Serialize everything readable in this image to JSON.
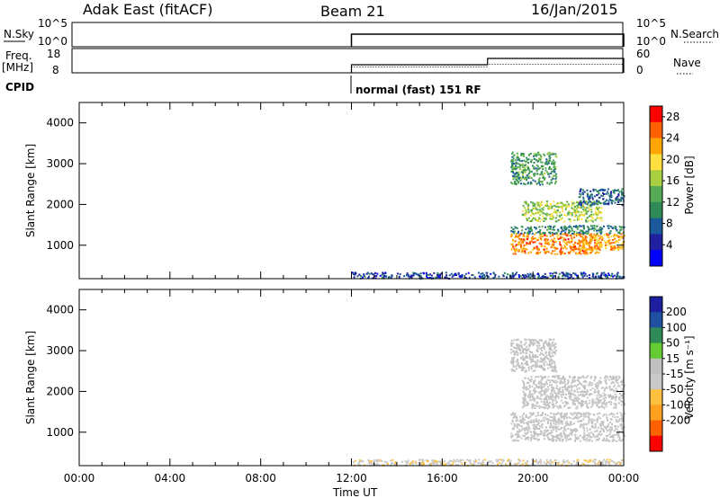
{
  "header": {
    "station": "Adak East (fitACF)",
    "beam": "Beam 21",
    "date": "16/Jan/2015"
  },
  "nsky_panel": {
    "left_label": "N.Sky",
    "right_label": "N.Search",
    "left_ticks": [
      "10^5",
      "10^0"
    ],
    "right_ticks": [
      "10^5",
      "10^0"
    ]
  },
  "freq_panel": {
    "left_label_line1": "Freq.",
    "left_label_line2": "[MHz]",
    "right_label": "Nave",
    "left_ticks": [
      "18",
      "8"
    ],
    "right_ticks": [
      "60",
      "0"
    ]
  },
  "cpid": {
    "label": "CPID",
    "mode": "normal (fast) 151 RF"
  },
  "colors": {
    "power": [
      "#0000ff",
      "#2020a0",
      "#1a5a9a",
      "#2e8b57",
      "#55aa55",
      "#a8d040",
      "#ffe040",
      "#ffa500",
      "#ff6000",
      "#ff0000"
    ],
    "velocity": [
      "#1e1ea0",
      "#2050a0",
      "#2e8b57",
      "#66cc33",
      "#c0c0c0",
      "#c8c8c8",
      "#ffc040",
      "#ffa020",
      "#ff6000",
      "#ff0000"
    ]
  },
  "chart_data": [
    {
      "type": "heatmap",
      "title": "",
      "xlabel": "Time UT",
      "ylabel": "Slant Range [km]",
      "xlim": [
        "00:00",
        "24:00"
      ],
      "x_ticks": [
        "00:00",
        "04:00",
        "08:00",
        "12:00",
        "16:00",
        "20:00",
        "00:00"
      ],
      "ylim": [
        180,
        4500
      ],
      "y_ticks": [
        1000,
        2000,
        3000,
        4000
      ],
      "colorbar_label": "Power [dB]",
      "colorbar_ticks": [
        4,
        8,
        12,
        16,
        20,
        24,
        28
      ],
      "colorbar_range": [
        0,
        30
      ],
      "echo_regions": [
        {
          "t_start": 12.0,
          "t_end": 24.0,
          "range_min": 200,
          "range_max": 350,
          "value": 6
        },
        {
          "t_start": 19.0,
          "t_end": 23.0,
          "range_min": 800,
          "range_max": 1300,
          "value": 24
        },
        {
          "t_start": 22.0,
          "t_end": 24.0,
          "range_min": 900,
          "range_max": 1300,
          "value": 22
        },
        {
          "t_start": 19.0,
          "t_end": 24.0,
          "range_min": 1300,
          "range_max": 1500,
          "value": 10
        },
        {
          "t_start": 19.5,
          "t_end": 23.0,
          "range_min": 1600,
          "range_max": 2100,
          "value": 16
        },
        {
          "t_start": 22.0,
          "t_end": 24.0,
          "range_min": 2000,
          "range_max": 2400,
          "value": 8
        },
        {
          "t_start": 19.0,
          "t_end": 21.0,
          "range_min": 2500,
          "range_max": 3300,
          "value": 12
        }
      ]
    },
    {
      "type": "heatmap",
      "title": "",
      "xlabel": "Time UT",
      "ylabel": "Slant Range [km]",
      "xlim": [
        "00:00",
        "24:00"
      ],
      "x_ticks": [
        "00:00",
        "04:00",
        "08:00",
        "12:00",
        "16:00",
        "20:00",
        "00:00"
      ],
      "ylim": [
        180,
        4500
      ],
      "y_ticks": [
        1000,
        2000,
        3000,
        4000
      ],
      "colorbar_label": "Velocity [m s⁻¹]",
      "colorbar_ticks": [
        200,
        100,
        50,
        15,
        -15,
        -50,
        -100,
        -200
      ],
      "colorbar_range": [
        -250,
        250
      ],
      "echo_regions": [
        {
          "t_start": 12.0,
          "t_end": 24.0,
          "range_min": 200,
          "range_max": 350,
          "value": -40
        },
        {
          "t_start": 19.0,
          "t_end": 24.0,
          "range_min": 800,
          "range_max": 1500,
          "value": 0
        },
        {
          "t_start": 19.5,
          "t_end": 24.0,
          "range_min": 1600,
          "range_max": 2400,
          "value": 0
        },
        {
          "t_start": 19.0,
          "t_end": 21.0,
          "range_min": 2500,
          "range_max": 3300,
          "value": 30
        }
      ]
    }
  ]
}
